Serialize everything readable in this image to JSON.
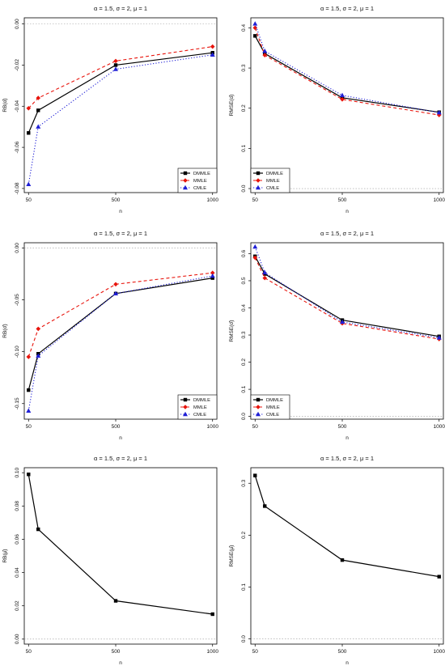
{
  "series_styles": {
    "DMMLE": {
      "color": "#000000",
      "dash": "",
      "marker": "square",
      "width": 1.2
    },
    "MMLE": {
      "color": "#e8140c",
      "dash": "4,3",
      "marker": "diamond",
      "width": 1.1
    },
    "CMLE": {
      "color": "#1f1fd6",
      "dash": "1.2,2.2",
      "marker": "triangle",
      "width": 1.1
    }
  },
  "chart_data": [
    {
      "type": "line",
      "title": "α = 1.5, σ = 2, μ = 1",
      "xlabel": "n",
      "ylabel": "RB(α̂)",
      "x": [
        50,
        100,
        500,
        1000
      ],
      "xticks": [
        50,
        500,
        1000
      ],
      "xlim": [
        28,
        1022
      ],
      "ylim": [
        -0.082,
        0.003
      ],
      "yticks": [
        0.0,
        -0.02,
        -0.04,
        -0.06,
        -0.08
      ],
      "ytick_labels": [
        "0.00",
        "-0.02",
        "-0.04",
        "-0.06",
        "-0.08"
      ],
      "ref_line": 0,
      "legend": "bottom-right",
      "series": [
        {
          "name": "DMMLE",
          "values": [
            -0.053,
            -0.042,
            -0.02,
            -0.014
          ]
        },
        {
          "name": "MMLE",
          "values": [
            -0.041,
            -0.036,
            -0.018,
            -0.011
          ]
        },
        {
          "name": "CMLE",
          "values": [
            -0.078,
            -0.05,
            -0.022,
            -0.015
          ]
        }
      ]
    },
    {
      "type": "line",
      "title": "α = 1.5, σ = 2, μ = 1",
      "xlabel": "n",
      "ylabel": "RMSE(α̂)",
      "x": [
        50,
        100,
        500,
        1000
      ],
      "xticks": [
        50,
        500,
        1000
      ],
      "xlim": [
        28,
        1022
      ],
      "ylim": [
        -0.01,
        0.425
      ],
      "yticks": [
        0.0,
        0.1,
        0.2,
        0.3,
        0.4
      ],
      "ytick_labels": [
        "0.0",
        "0.1",
        "0.2",
        "0.3",
        "0.4"
      ],
      "ref_line": 0,
      "legend": "bottom-left",
      "series": [
        {
          "name": "DMMLE",
          "values": [
            0.38,
            0.336,
            0.226,
            0.19
          ]
        },
        {
          "name": "MMLE",
          "values": [
            0.4,
            0.332,
            0.222,
            0.183
          ]
        },
        {
          "name": "CMLE",
          "values": [
            0.41,
            0.342,
            0.232,
            0.189
          ]
        }
      ]
    },
    {
      "type": "line",
      "title": "α = 1.5, σ = 2, μ = 1",
      "xlabel": "n",
      "ylabel": "RB(σ̂)",
      "x": [
        50,
        100,
        500,
        1000
      ],
      "xticks": [
        50,
        500,
        1000
      ],
      "xlim": [
        28,
        1022
      ],
      "ylim": [
        -0.165,
        0.005
      ],
      "yticks": [
        0.0,
        -0.05,
        -0.1,
        -0.15
      ],
      "ytick_labels": [
        "0.00",
        "-0.05",
        "-0.10",
        "-0.15"
      ],
      "ref_line": 0,
      "legend": "bottom-right",
      "series": [
        {
          "name": "DMMLE",
          "values": [
            -0.137,
            -0.102,
            -0.044,
            -0.029
          ]
        },
        {
          "name": "MMLE",
          "values": [
            -0.105,
            -0.078,
            -0.035,
            -0.024
          ]
        },
        {
          "name": "CMLE",
          "values": [
            -0.157,
            -0.104,
            -0.044,
            -0.027
          ]
        }
      ]
    },
    {
      "type": "line",
      "title": "α = 1.5, σ = 2, μ = 1",
      "xlabel": "n",
      "ylabel": "RMSE(σ̂)",
      "x": [
        50,
        100,
        500,
        1000
      ],
      "xticks": [
        50,
        500,
        1000
      ],
      "xlim": [
        28,
        1022
      ],
      "ylim": [
        -0.01,
        0.64
      ],
      "yticks": [
        0.0,
        0.1,
        0.2,
        0.3,
        0.4,
        0.5,
        0.6
      ],
      "ytick_labels": [
        "0.0",
        "0.1",
        "0.2",
        "0.3",
        "0.4",
        "0.5",
        "0.6"
      ],
      "ref_line": 0,
      "legend": "bottom-left",
      "series": [
        {
          "name": "DMMLE",
          "values": [
            0.59,
            0.525,
            0.355,
            0.295
          ]
        },
        {
          "name": "MMLE",
          "values": [
            0.585,
            0.51,
            0.343,
            0.285
          ]
        },
        {
          "name": "CMLE",
          "values": [
            0.625,
            0.53,
            0.348,
            0.29
          ]
        }
      ]
    },
    {
      "type": "line",
      "title": "α = 1.5, σ = 2, μ = 1",
      "xlabel": "n",
      "ylabel": "RB(μ̂)",
      "x": [
        50,
        100,
        500,
        1000
      ],
      "xticks": [
        50,
        500,
        1000
      ],
      "xlim": [
        28,
        1022
      ],
      "ylim": [
        -0.003,
        0.103
      ],
      "yticks": [
        0.0,
        0.02,
        0.04,
        0.06,
        0.08,
        0.1
      ],
      "ytick_labels": [
        "0.00",
        "0.02",
        "0.04",
        "0.06",
        "0.08",
        "0.10"
      ],
      "ref_line": 0,
      "legend": "none",
      "series": [
        {
          "name": "DMMLE",
          "values": [
            0.099,
            0.066,
            0.023,
            0.015
          ]
        }
      ]
    },
    {
      "type": "line",
      "title": "α = 1.5, σ = 2, μ = 1",
      "xlabel": "n",
      "ylabel": "RMSE(μ̂)",
      "x": [
        50,
        100,
        500,
        1000
      ],
      "xticks": [
        50,
        500,
        1000
      ],
      "xlim": [
        28,
        1022
      ],
      "ylim": [
        -0.01,
        0.33
      ],
      "yticks": [
        0.0,
        0.1,
        0.2,
        0.3
      ],
      "ytick_labels": [
        "0.0",
        "0.1",
        "0.2",
        "0.3"
      ],
      "ref_line": 0,
      "legend": "none",
      "series": [
        {
          "name": "DMMLE",
          "values": [
            0.315,
            0.256,
            0.152,
            0.12
          ]
        }
      ]
    }
  ]
}
